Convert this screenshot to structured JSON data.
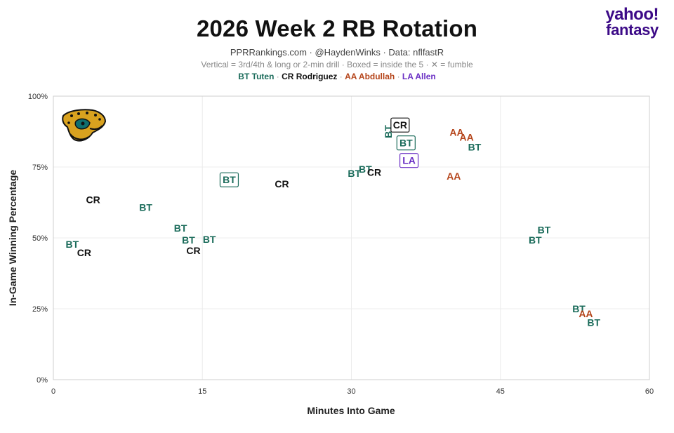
{
  "header": {
    "title": "2026 Week 2 RB Rotation",
    "subtitle": "PPRRankings.com · @HaydenWinks · Data: nflfastR",
    "caption": "Vertical = 3rd/4th & long or 2-min drill · Boxed = inside the 5 · ✕ = fumble"
  },
  "brand": {
    "line1": "yahoo!",
    "line2": "fantasy"
  },
  "legend": {
    "items": [
      {
        "code": "BT",
        "label": "BT Tuten",
        "color": "#1a6b5a"
      },
      {
        "code": "CR",
        "label": "CR Rodriguez",
        "color": "#111111"
      },
      {
        "code": "AA",
        "label": "AA Abdullah",
        "color": "#b5451b"
      },
      {
        "code": "LA",
        "label": "LA Allen",
        "color": "#6a2fc4"
      }
    ]
  },
  "team_logo_icon": "jaguar-head-icon",
  "chart_data": {
    "type": "scatter",
    "xlabel": "Minutes Into Game",
    "ylabel": "In-Game Winning Percentage",
    "xlim": [
      0,
      60
    ],
    "ylim": [
      0,
      100
    ],
    "xticks": [
      0,
      15,
      30,
      45,
      60
    ],
    "yticks": [
      0,
      25,
      50,
      75,
      100
    ],
    "xtick_labels": [
      "0",
      "15",
      "30",
      "45",
      "60"
    ],
    "ytick_labels": [
      "0%",
      "25%",
      "50%",
      "75%",
      "100%"
    ],
    "grid": true,
    "points": [
      {
        "label": "BT",
        "x": 1.9,
        "y": 47.8,
        "vertical": false,
        "boxed": false
      },
      {
        "label": "CR",
        "x": 3.1,
        "y": 44.8,
        "vertical": false,
        "boxed": false
      },
      {
        "label": "CR",
        "x": 4.0,
        "y": 63.5,
        "vertical": false,
        "boxed": false
      },
      {
        "label": "BT",
        "x": 9.3,
        "y": 60.8,
        "vertical": false,
        "boxed": false
      },
      {
        "label": "BT",
        "x": 12.8,
        "y": 53.5,
        "vertical": false,
        "boxed": false
      },
      {
        "label": "BT",
        "x": 13.6,
        "y": 49.3,
        "vertical": false,
        "boxed": false
      },
      {
        "label": "CR",
        "x": 14.1,
        "y": 45.5,
        "vertical": false,
        "boxed": false
      },
      {
        "label": "BT",
        "x": 15.7,
        "y": 49.5,
        "vertical": false,
        "boxed": false
      },
      {
        "label": "BT",
        "x": 17.7,
        "y": 70.5,
        "vertical": false,
        "boxed": true
      },
      {
        "label": "CR",
        "x": 23.0,
        "y": 69.0,
        "vertical": false,
        "boxed": false
      },
      {
        "label": "BT",
        "x": 30.3,
        "y": 72.8,
        "vertical": false,
        "boxed": false
      },
      {
        "label": "BT",
        "x": 31.4,
        "y": 74.2,
        "vertical": false,
        "boxed": false
      },
      {
        "label": "CR",
        "x": 32.3,
        "y": 73.2,
        "vertical": false,
        "boxed": false
      },
      {
        "label": "BT",
        "x": 33.7,
        "y": 87.5,
        "vertical": true,
        "boxed": false
      },
      {
        "label": "CR",
        "x": 34.9,
        "y": 89.8,
        "vertical": false,
        "boxed": true
      },
      {
        "label": "BT",
        "x": 35.5,
        "y": 83.5,
        "vertical": false,
        "boxed": true
      },
      {
        "label": "LA",
        "x": 35.8,
        "y": 77.3,
        "vertical": false,
        "boxed": true
      },
      {
        "label": "AA",
        "x": 40.3,
        "y": 71.8,
        "vertical": false,
        "boxed": false
      },
      {
        "label": "AA",
        "x": 40.6,
        "y": 87.3,
        "vertical": false,
        "boxed": false
      },
      {
        "label": "AA",
        "x": 41.6,
        "y": 85.5,
        "vertical": false,
        "boxed": false
      },
      {
        "label": "BT",
        "x": 42.4,
        "y": 82.0,
        "vertical": false,
        "boxed": false
      },
      {
        "label": "BT",
        "x": 48.5,
        "y": 49.3,
        "vertical": false,
        "boxed": false
      },
      {
        "label": "BT",
        "x": 49.4,
        "y": 52.8,
        "vertical": false,
        "boxed": false
      },
      {
        "label": "BT",
        "x": 52.9,
        "y": 25.0,
        "vertical": false,
        "boxed": false
      },
      {
        "label": "AA",
        "x": 53.6,
        "y": 23.3,
        "vertical": false,
        "boxed": false
      },
      {
        "label": "BT",
        "x": 54.4,
        "y": 20.2,
        "vertical": false,
        "boxed": false
      }
    ]
  }
}
